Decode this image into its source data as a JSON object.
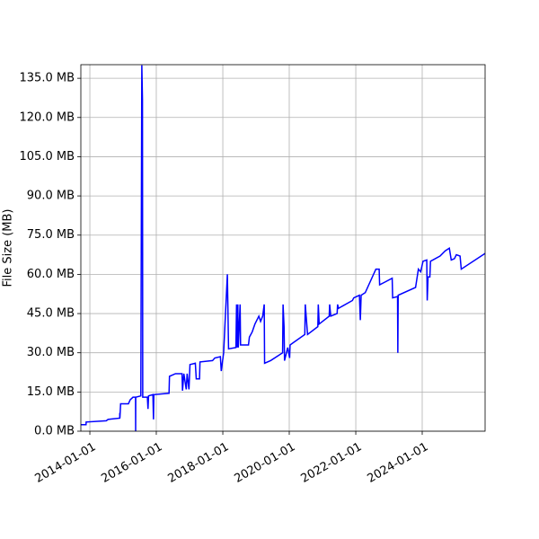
{
  "chart_data": {
    "type": "line",
    "ylabel": "File Size (MB)",
    "color": "#0000ff",
    "grid": true,
    "xlim": [
      "2013-09-24",
      "2025-11-22"
    ],
    "xticks": [
      "2014-01-01",
      "2016-01-01",
      "2018-01-01",
      "2020-01-01",
      "2022-01-01",
      "2024-01-01"
    ],
    "ylim": [
      0,
      140.2
    ],
    "yticks": [
      {
        "value": 0,
        "label": "0.0 MB"
      },
      {
        "value": 15,
        "label": "15.0 MB"
      },
      {
        "value": 30,
        "label": "30.0 MB"
      },
      {
        "value": 45,
        "label": "45.0 MB"
      },
      {
        "value": 60,
        "label": "60.0 MB"
      },
      {
        "value": 75,
        "label": "75.0 MB"
      },
      {
        "value": 90,
        "label": "90.0 MB"
      },
      {
        "value": 105,
        "label": "105.0 MB"
      },
      {
        "value": 120,
        "label": "120.0 MB"
      },
      {
        "value": 135,
        "label": "135.0 MB"
      }
    ],
    "x": [
      "2013-09-24",
      "2013-11-20",
      "2013-11-21",
      "2014-07-01",
      "2014-07-20",
      "2014-11-25",
      "2014-11-26",
      "2014-11-27",
      "2014-12-05",
      "2015-03-01",
      "2015-03-20",
      "2015-04-20",
      "2015-05-18",
      "2015-05-19",
      "2015-05-20",
      "2015-07-15",
      "2015-07-26",
      "2015-08-02",
      "2015-08-05",
      "2015-09-25",
      "2015-10-02",
      "2015-10-08",
      "2015-11-25",
      "2015-12-01",
      "2015-12-05",
      "2016-05-20",
      "2016-05-25",
      "2016-07-30",
      "2016-10-10",
      "2016-10-15",
      "2016-10-30",
      "2016-11-25",
      "2016-12-05",
      "2016-12-25",
      "2017-01-05",
      "2017-03-05",
      "2017-03-15",
      "2017-04-20",
      "2017-04-25",
      "2017-09-10",
      "2017-10-05",
      "2017-12-05",
      "2017-12-15",
      "2018-01-10",
      "2018-02-20",
      "2018-03-05",
      "2018-05-25",
      "2018-06-01",
      "2018-06-05",
      "2018-06-15",
      "2018-06-20",
      "2018-07-10",
      "2018-07-15",
      "2018-10-10",
      "2018-10-20",
      "2018-11-20",
      "2018-12-20",
      "2019-02-01",
      "2019-02-20",
      "2019-03-15",
      "2019-04-01",
      "2019-04-05",
      "2019-06-10",
      "2019-10-20",
      "2019-10-25",
      "2019-11-05",
      "2019-11-10",
      "2019-12-15",
      "2020-01-05",
      "2020-01-10",
      "2020-06-20",
      "2020-06-25",
      "2020-07-20",
      "2020-11-10",
      "2020-11-15",
      "2020-11-25",
      "2021-03-15",
      "2021-03-20",
      "2021-04-01",
      "2021-06-10",
      "2021-06-15",
      "2021-06-25",
      "2021-11-25",
      "2021-12-10",
      "2022-02-10",
      "2022-02-20",
      "2022-03-01",
      "2022-04-15",
      "2022-08-10",
      "2022-09-15",
      "2022-09-20",
      "2022-11-15",
      "2023-02-05",
      "2023-02-10",
      "2023-04-05",
      "2023-04-08",
      "2023-04-12",
      "2023-10-20",
      "2023-11-20",
      "2023-12-15",
      "2024-01-10",
      "2024-02-20",
      "2024-02-25",
      "2024-03-05",
      "2024-03-25",
      "2024-04-01",
      "2024-07-15",
      "2024-09-10",
      "2024-10-25",
      "2024-11-15",
      "2024-12-20",
      "2025-01-10",
      "2025-02-20",
      "2025-03-05",
      "2025-11-22"
    ],
    "values": [
      2.5,
      2.5,
      3.5,
      4,
      4.5,
      5,
      7,
      5,
      10.5,
      10.5,
      12,
      13,
      13,
      0,
      13,
      13.5,
      140,
      127,
      13,
      13,
      8.5,
      13.5,
      14,
      4.5,
      14,
      14.5,
      21,
      22,
      22,
      15.5,
      22,
      16,
      22,
      16,
      25.5,
      26,
      20,
      20,
      26.5,
      27,
      28,
      28.5,
      23,
      30,
      60,
      31.5,
      32,
      48.5,
      32,
      48.5,
      32,
      48.5,
      33,
      33,
      36,
      38,
      41,
      44,
      42,
      44,
      48.5,
      26,
      27,
      30,
      48.5,
      40,
      27,
      32,
      28,
      33,
      37,
      48.5,
      37,
      40,
      48.5,
      41,
      44,
      48.5,
      44,
      45,
      48.5,
      47,
      50,
      51,
      52,
      42.5,
      52,
      53,
      62,
      62,
      56,
      57,
      58.5,
      51,
      51.5,
      30,
      52,
      55,
      62,
      61,
      65,
      65.5,
      50,
      59,
      59,
      65,
      67,
      69,
      70,
      65.5,
      66,
      67.5,
      67,
      62,
      68
    ]
  }
}
